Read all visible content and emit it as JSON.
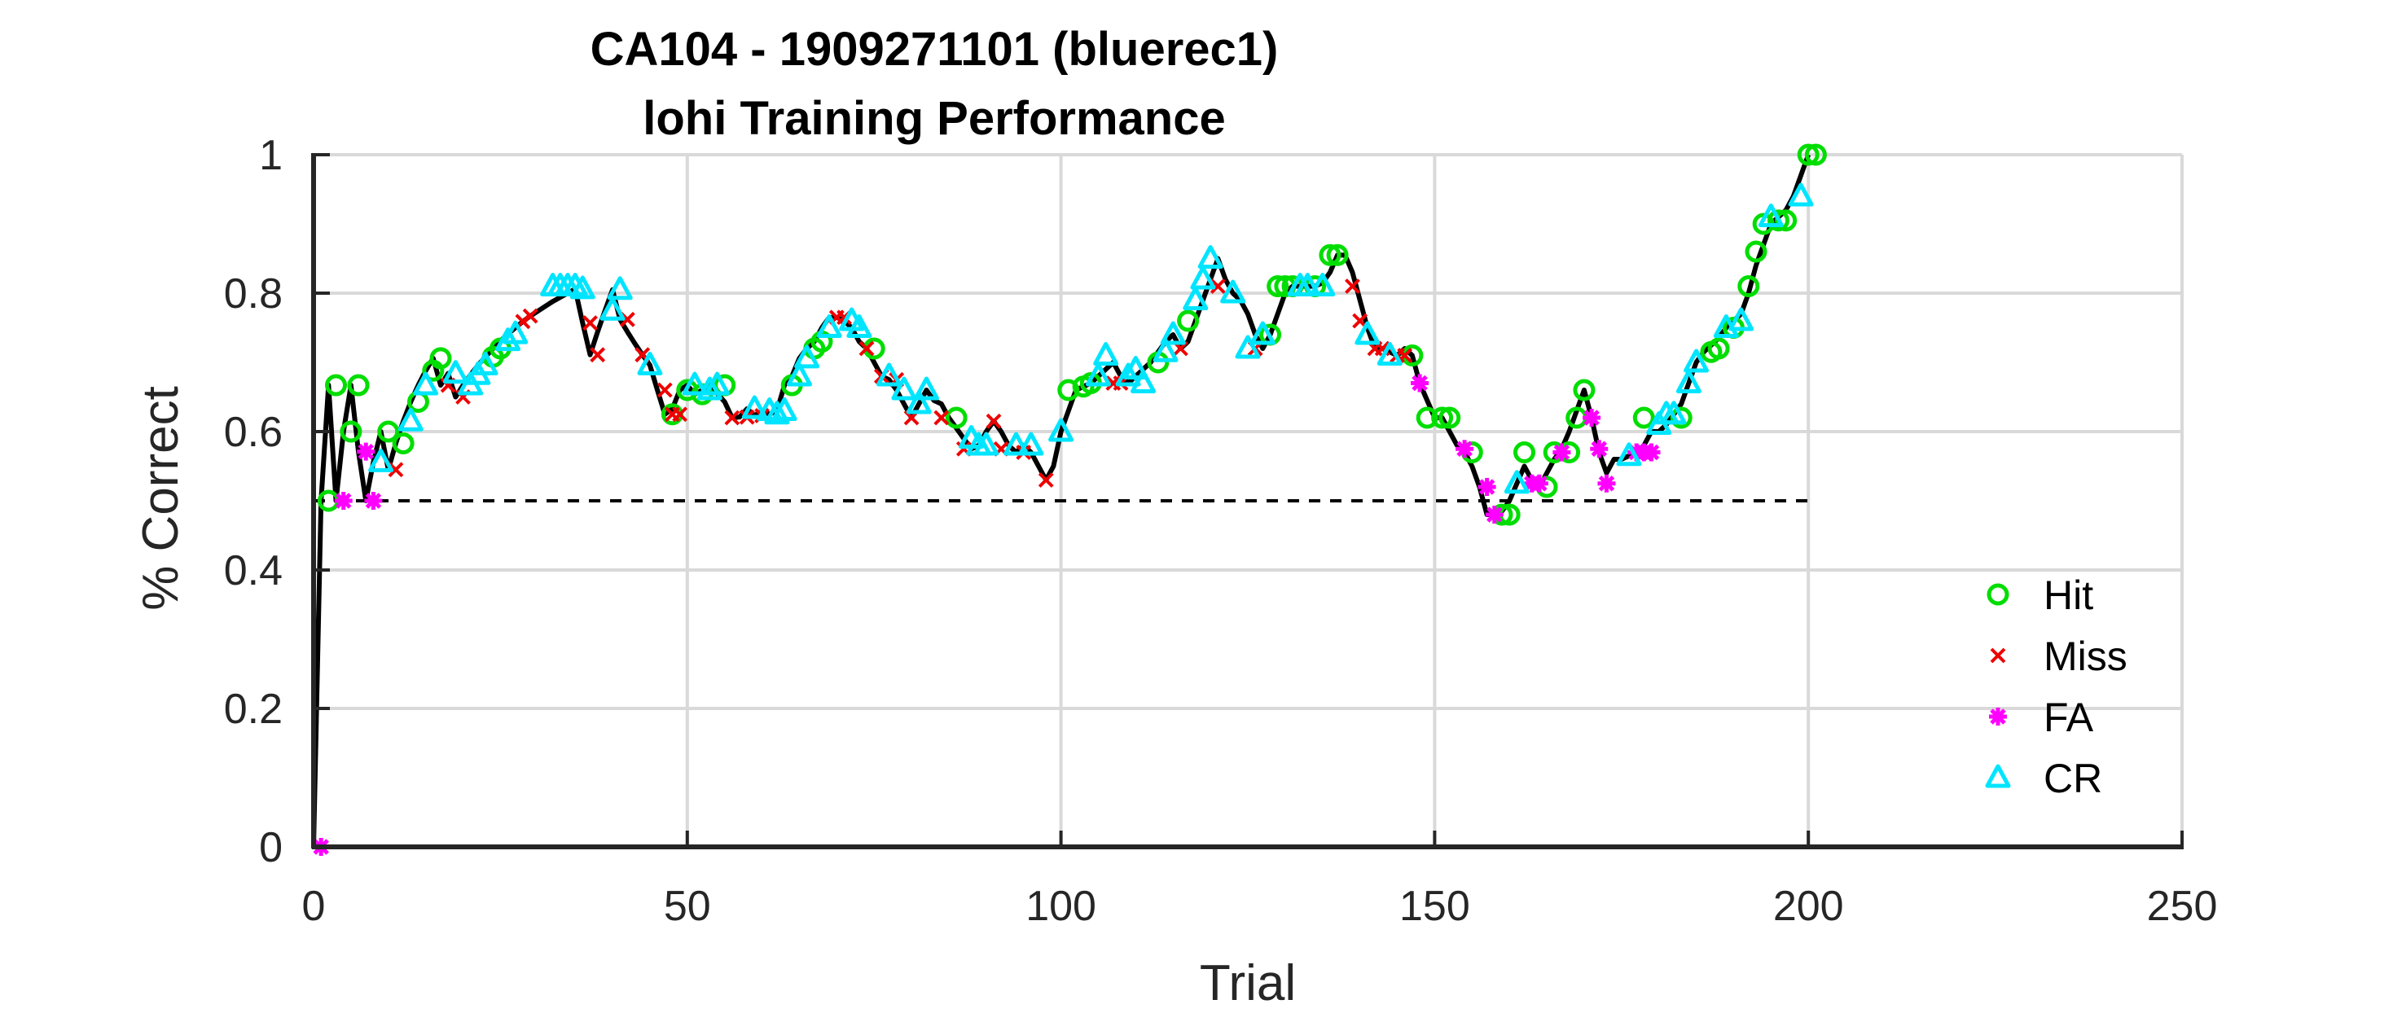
{
  "chart_data": {
    "type": "line",
    "title": "CA104 - 1909271101 (bluerec1)",
    "subtitle": "lohi Training Performance",
    "xlabel": "Trial",
    "ylabel": "% Correct",
    "xlim": [
      0,
      250
    ],
    "ylim": [
      0,
      1
    ],
    "xticks": [
      "0",
      "50",
      "100",
      "150",
      "200",
      "250"
    ],
    "yticks": [
      "0",
      "0.2",
      "0.4",
      "0.6",
      "0.8",
      "1"
    ],
    "grid": true,
    "legend": "right",
    "chance_level": 0.5,
    "chance_x": [
      0,
      200
    ],
    "colors": {
      "line": "#000000",
      "chance": "#000000",
      "grid": "#d9d9d9",
      "Hit": "#00dd00",
      "Miss": "#ee0000",
      "FA": "#ff00ff",
      "CR": "#00e5ff"
    },
    "series": [
      {
        "name": "Hit",
        "marker": "circle"
      },
      {
        "name": "Miss",
        "marker": "x"
      },
      {
        "name": "FA",
        "marker": "star"
      },
      {
        "name": "CR",
        "marker": "triangle"
      }
    ],
    "performance": [
      0,
      0.5,
      0.667,
      0.5,
      0.6,
      0.667,
      0.571,
      0.5,
      0.556,
      0.6,
      0.545,
      0.583,
      0.615,
      0.643,
      0.667,
      0.688,
      0.706,
      0.667,
      0.684,
      0.65,
      0.667,
      0.682,
      0.696,
      0.708,
      0.72,
      0.731,
      0.741,
      0.75,
      0.759,
      0.767,
      0.774,
      0.781,
      0.788,
      0.794,
      0.8,
      0.806,
      0.757,
      0.711,
      0.744,
      0.775,
      0.805,
      0.762,
      0.744,
      0.727,
      0.711,
      0.696,
      0.66,
      0.625,
      0.633,
      0.66,
      0.667,
      0.654,
      0.66,
      0.667,
      0.655,
      0.643,
      0.62,
      0.621,
      0.633,
      0.623,
      0.63,
      0.625,
      0.63,
      0.667,
      0.68,
      0.706,
      0.72,
      0.73,
      0.75,
      0.765,
      0.765,
      0.76,
      0.75,
      0.73,
      0.72,
      0.7,
      0.68,
      0.675,
      0.66,
      0.64,
      0.62,
      0.64,
      0.66,
      0.645,
      0.64,
      0.62,
      0.605,
      0.59,
      0.575,
      0.58,
      0.6,
      0.615,
      0.6,
      0.58,
      0.57,
      0.58,
      0.57,
      0.55,
      0.53,
      0.55,
      0.6,
      0.63,
      0.66,
      0.665,
      0.67,
      0.68,
      0.69,
      0.7,
      0.68,
      0.67,
      0.68,
      0.69,
      0.7,
      0.715,
      0.73,
      0.74,
      0.72,
      0.73,
      0.76,
      0.79,
      0.82,
      0.85,
      0.82,
      0.8,
      0.79,
      0.77,
      0.74,
      0.72,
      0.74,
      0.77,
      0.8,
      0.81,
      0.81,
      0.81,
      0.81,
      0.815,
      0.83,
      0.855,
      0.855,
      0.83,
      0.79,
      0.75,
      0.72,
      0.72,
      0.715,
      0.71,
      0.72,
      0.71,
      0.67,
      0.645,
      0.62,
      0.62,
      0.6,
      0.58,
      0.57,
      0.55,
      0.52,
      0.48,
      0.48,
      0.485,
      0.5,
      0.525,
      0.55,
      0.53,
      0.52,
      0.54,
      0.56,
      0.575,
      0.6,
      0.63,
      0.66,
      0.62,
      0.57,
      0.54,
      0.56,
      0.56,
      0.565,
      0.57,
      0.58,
      0.6,
      0.6,
      0.61,
      0.625,
      0.64,
      0.67,
      0.7,
      0.715,
      0.725,
      0.735,
      0.75,
      0.76,
      0.77,
      0.8,
      0.84,
      0.87,
      0.9,
      0.91,
      0.92,
      0.94,
      0.97,
      1.0
    ],
    "points": {
      "Hit": [
        [
          2,
          0.5
        ],
        [
          3,
          0.667
        ],
        [
          5,
          0.6
        ],
        [
          6,
          0.667
        ],
        [
          10,
          0.6
        ],
        [
          12,
          0.583
        ],
        [
          14,
          0.643
        ],
        [
          16,
          0.688
        ],
        [
          17,
          0.706
        ],
        [
          24,
          0.708
        ],
        [
          25,
          0.72
        ],
        [
          48,
          0.625
        ],
        [
          50,
          0.66
        ],
        [
          52,
          0.654
        ],
        [
          55,
          0.667
        ],
        [
          64,
          0.667
        ],
        [
          67,
          0.72
        ],
        [
          68,
          0.73
        ],
        [
          75,
          0.72
        ],
        [
          86,
          0.62
        ],
        [
          101,
          0.66
        ],
        [
          103,
          0.665
        ],
        [
          104,
          0.67
        ],
        [
          113,
          0.7
        ],
        [
          117,
          0.76
        ],
        [
          128,
          0.74
        ],
        [
          129,
          0.81
        ],
        [
          130,
          0.81
        ],
        [
          131,
          0.81
        ],
        [
          134,
          0.81
        ],
        [
          136,
          0.855
        ],
        [
          137,
          0.855
        ],
        [
          147,
          0.71
        ],
        [
          149,
          0.62
        ],
        [
          151,
          0.62
        ],
        [
          152,
          0.62
        ],
        [
          155,
          0.57
        ],
        [
          159,
          0.48
        ],
        [
          160,
          0.48
        ],
        [
          162,
          0.57
        ],
        [
          165,
          0.52
        ],
        [
          166,
          0.57
        ],
        [
          168,
          0.57
        ],
        [
          169,
          0.62
        ],
        [
          170,
          0.66
        ],
        [
          178,
          0.62
        ],
        [
          183,
          0.62
        ],
        [
          187,
          0.715
        ],
        [
          188,
          0.72
        ],
        [
          190,
          0.75
        ],
        [
          192,
          0.81
        ],
        [
          193,
          0.86
        ],
        [
          194,
          0.9
        ],
        [
          196,
          0.905
        ],
        [
          197,
          0.905
        ],
        [
          200,
          1.0
        ],
        [
          201,
          1.0
        ]
      ],
      "Miss": [
        [
          11,
          0.545
        ],
        [
          18,
          0.667
        ],
        [
          20,
          0.65
        ],
        [
          28,
          0.759
        ],
        [
          29,
          0.767
        ],
        [
          37,
          0.757
        ],
        [
          38,
          0.711
        ],
        [
          42,
          0.762
        ],
        [
          44,
          0.711
        ],
        [
          47,
          0.66
        ],
        [
          48,
          0.625
        ],
        [
          49,
          0.625
        ],
        [
          56,
          0.62
        ],
        [
          58,
          0.621
        ],
        [
          60,
          0.623
        ],
        [
          70,
          0.765
        ],
        [
          71,
          0.765
        ],
        [
          74,
          0.72
        ],
        [
          76,
          0.68
        ],
        [
          78,
          0.675
        ],
        [
          80,
          0.62
        ],
        [
          84,
          0.62
        ],
        [
          87,
          0.575
        ],
        [
          91,
          0.615
        ],
        [
          92,
          0.575
        ],
        [
          95,
          0.57
        ],
        [
          98,
          0.53
        ],
        [
          107,
          0.67
        ],
        [
          108,
          0.67
        ],
        [
          116,
          0.72
        ],
        [
          121,
          0.81
        ],
        [
          126,
          0.72
        ],
        [
          139,
          0.81
        ],
        [
          140,
          0.76
        ],
        [
          142,
          0.72
        ],
        [
          143,
          0.72
        ],
        [
          145,
          0.71
        ],
        [
          146,
          0.71
        ]
      ],
      "FA": [
        [
          1,
          0
        ],
        [
          4,
          0.5
        ],
        [
          7,
          0.571
        ],
        [
          8,
          0.5
        ],
        [
          148,
          0.67
        ],
        [
          154,
          0.575
        ],
        [
          157,
          0.52
        ],
        [
          158,
          0.48
        ],
        [
          163,
          0.525
        ],
        [
          164,
          0.525
        ],
        [
          167,
          0.57
        ],
        [
          171,
          0.62
        ],
        [
          172,
          0.575
        ],
        [
          173,
          0.525
        ],
        [
          177,
          0.57
        ],
        [
          178,
          0.57
        ],
        [
          179,
          0.57
        ]
      ],
      "CR": [
        [
          9,
          0.556
        ],
        [
          13,
          0.615
        ],
        [
          15,
          0.667
        ],
        [
          19,
          0.684
        ],
        [
          21,
          0.667
        ],
        [
          22,
          0.682
        ],
        [
          23,
          0.696
        ],
        [
          26,
          0.731
        ],
        [
          27,
          0.741
        ],
        [
          32,
          0.81
        ],
        [
          33,
          0.81
        ],
        [
          34,
          0.81
        ],
        [
          35,
          0.81
        ],
        [
          36,
          0.806
        ],
        [
          40,
          0.775
        ],
        [
          41,
          0.805
        ],
        [
          45,
          0.696
        ],
        [
          51,
          0.667
        ],
        [
          53,
          0.66
        ],
        [
          54,
          0.667
        ],
        [
          59,
          0.633
        ],
        [
          61,
          0.63
        ],
        [
          62,
          0.625
        ],
        [
          63,
          0.63
        ],
        [
          65,
          0.68
        ],
        [
          66,
          0.706
        ],
        [
          69,
          0.75
        ],
        [
          72,
          0.76
        ],
        [
          73,
          0.75
        ],
        [
          77,
          0.68
        ],
        [
          79,
          0.66
        ],
        [
          81,
          0.64
        ],
        [
          82,
          0.66
        ],
        [
          88,
          0.59
        ],
        [
          89,
          0.58
        ],
        [
          90,
          0.58
        ],
        [
          94,
          0.58
        ],
        [
          96,
          0.58
        ],
        [
          100,
          0.6
        ],
        [
          105,
          0.68
        ],
        [
          106,
          0.71
        ],
        [
          109,
          0.68
        ],
        [
          110,
          0.69
        ],
        [
          111,
          0.67
        ],
        [
          114,
          0.715
        ],
        [
          115,
          0.74
        ],
        [
          118,
          0.79
        ],
        [
          119,
          0.82
        ],
        [
          120,
          0.85
        ],
        [
          123,
          0.8
        ],
        [
          125,
          0.72
        ],
        [
          127,
          0.74
        ],
        [
          132,
          0.81
        ],
        [
          133,
          0.81
        ],
        [
          135,
          0.81
        ],
        [
          141,
          0.74
        ],
        [
          144,
          0.71
        ],
        [
          161,
          0.525
        ],
        [
          176,
          0.565
        ],
        [
          180,
          0.61
        ],
        [
          181,
          0.625
        ],
        [
          182,
          0.625
        ],
        [
          184,
          0.67
        ],
        [
          185,
          0.7
        ],
        [
          189,
          0.75
        ],
        [
          191,
          0.76
        ],
        [
          195,
          0.91
        ],
        [
          199,
          0.94
        ]
      ]
    }
  }
}
